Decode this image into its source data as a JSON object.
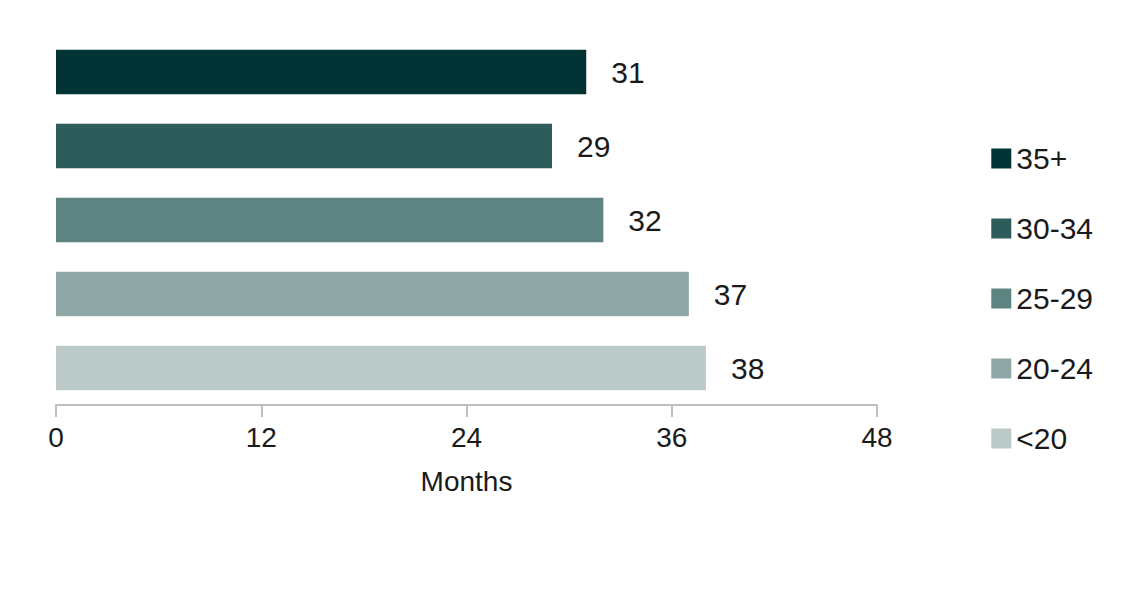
{
  "chart_data": {
    "type": "bar",
    "orientation": "horizontal",
    "categories": [
      "35+",
      "30-34",
      "25-29",
      "20-24",
      "<20"
    ],
    "values": [
      31,
      29,
      32,
      37,
      38
    ],
    "colors": [
      "#023436",
      "#2d5c5b",
      "#5e8481",
      "#8fa8a6",
      "#bccaca"
    ],
    "xlabel": "Months",
    "xlim": [
      0,
      48
    ],
    "xticks": [
      0,
      12,
      24,
      36,
      48
    ],
    "grid": false,
    "legend": "right",
    "data_labels": true,
    "tick_labels": "x"
  }
}
